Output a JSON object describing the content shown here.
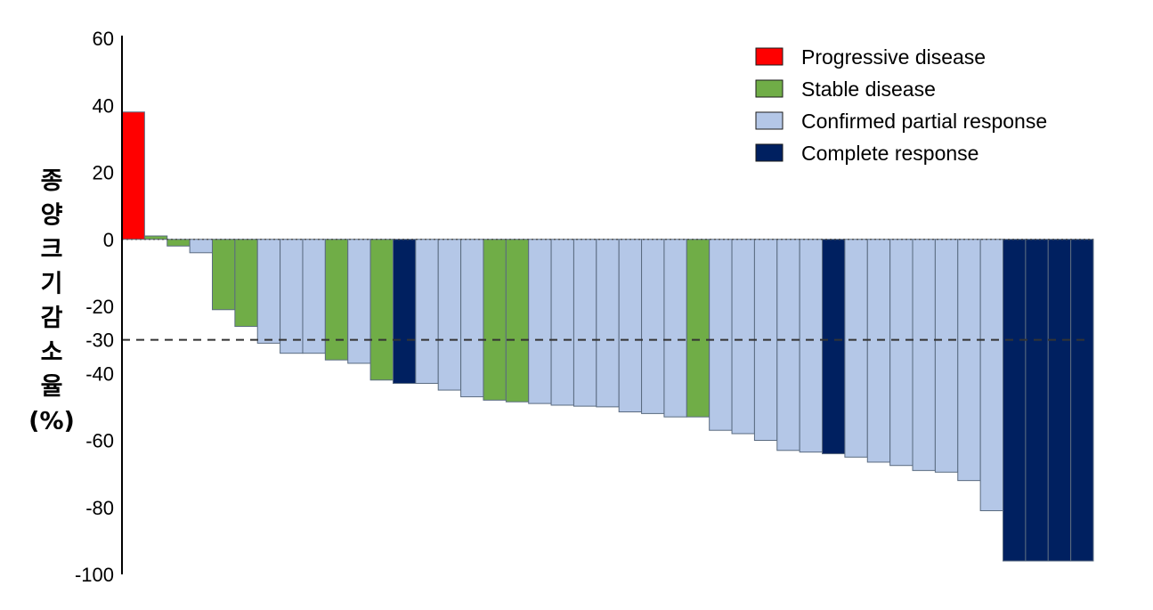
{
  "chart_data": {
    "type": "bar",
    "title": "",
    "xlabel": "",
    "ylabel": "종양크기감소율(%)",
    "ylabel_lines": [
      "종",
      "양",
      "크",
      "기",
      "감",
      "소",
      "율",
      "(%)"
    ],
    "ylim": [
      -100,
      60
    ],
    "yticks": [
      60,
      40,
      20,
      0,
      -20,
      -30,
      -40,
      -60,
      -80,
      -100
    ],
    "reference_line": {
      "y": -30,
      "style": "dashed"
    },
    "grid": false,
    "legend_position": "top-right",
    "legend": [
      {
        "key": "PD",
        "label": "Progressive disease",
        "color": "#ff0000"
      },
      {
        "key": "SD",
        "label": "Stable disease",
        "color": "#70ad47"
      },
      {
        "key": "PR",
        "label": "Confirmed partial response",
        "color": "#b4c7e7"
      },
      {
        "key": "CR",
        "label": "Complete response",
        "color": "#002060"
      }
    ],
    "bars": [
      {
        "value": 38,
        "category": "PD"
      },
      {
        "value": 1,
        "category": "SD"
      },
      {
        "value": -2,
        "category": "SD"
      },
      {
        "value": -4,
        "category": "PR"
      },
      {
        "value": -21,
        "category": "SD"
      },
      {
        "value": -26,
        "category": "SD"
      },
      {
        "value": -31,
        "category": "PR"
      },
      {
        "value": -34,
        "category": "PR"
      },
      {
        "value": -34,
        "category": "PR"
      },
      {
        "value": -36,
        "category": "SD"
      },
      {
        "value": -37,
        "category": "PR"
      },
      {
        "value": -42,
        "category": "SD"
      },
      {
        "value": -43,
        "category": "CR"
      },
      {
        "value": -43,
        "category": "PR"
      },
      {
        "value": -45,
        "category": "PR"
      },
      {
        "value": -47,
        "category": "PR"
      },
      {
        "value": -48,
        "category": "SD"
      },
      {
        "value": -48.5,
        "category": "SD"
      },
      {
        "value": -49,
        "category": "PR"
      },
      {
        "value": -49.5,
        "category": "PR"
      },
      {
        "value": -49.8,
        "category": "PR"
      },
      {
        "value": -50,
        "category": "PR"
      },
      {
        "value": -51.5,
        "category": "PR"
      },
      {
        "value": -52,
        "category": "PR"
      },
      {
        "value": -53,
        "category": "PR"
      },
      {
        "value": -53,
        "category": "SD"
      },
      {
        "value": -57,
        "category": "PR"
      },
      {
        "value": -58,
        "category": "PR"
      },
      {
        "value": -60,
        "category": "PR"
      },
      {
        "value": -63,
        "category": "PR"
      },
      {
        "value": -63.5,
        "category": "PR"
      },
      {
        "value": -64,
        "category": "CR"
      },
      {
        "value": -65,
        "category": "PR"
      },
      {
        "value": -66.5,
        "category": "PR"
      },
      {
        "value": -67.5,
        "category": "PR"
      },
      {
        "value": -69,
        "category": "PR"
      },
      {
        "value": -69.5,
        "category": "PR"
      },
      {
        "value": -72,
        "category": "PR"
      },
      {
        "value": -81,
        "category": "PR"
      },
      {
        "value": -96,
        "category": "CR"
      },
      {
        "value": -96,
        "category": "CR"
      },
      {
        "value": -96,
        "category": "CR"
      },
      {
        "value": -96,
        "category": "CR"
      }
    ]
  }
}
